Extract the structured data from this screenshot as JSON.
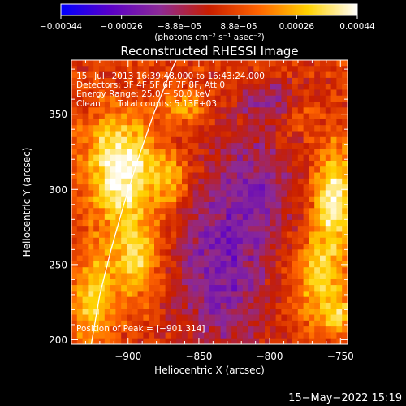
{
  "chart_data": {
    "type": "heatmap",
    "title": "Reconstructed RHESSI Image",
    "xlabel": "Heliocentric X (arcsec)",
    "ylabel": "Heliocentric Y (arcsec)",
    "xlim": [
      -940,
      -745
    ],
    "ylim": [
      197,
      386
    ],
    "x_ticks": [
      -900,
      -850,
      -800,
      -750
    ],
    "x_tick_labels": [
      "−900",
      "−850",
      "−800",
      "−750"
    ],
    "y_ticks": [
      200,
      250,
      300,
      350
    ],
    "y_tick_labels": [
      "200",
      "250",
      "300",
      "350"
    ],
    "colorbar": {
      "range": [
        -0.00044,
        0.00044
      ],
      "ticks": [
        -0.00044,
        -0.00026,
        -8.8e-05,
        8.8e-05,
        0.00026,
        0.00044
      ],
      "tick_labels": [
        "−0.00044",
        "−0.00026",
        "−8.8e−05",
        "8.8e−05",
        "0.00026",
        "0.00044"
      ],
      "unit_label": "(photons cm⁻² s⁻¹ asec⁻²)",
      "colors": [
        "#0000ff",
        "#5a00c8",
        "#8c2a96",
        "#c81e00",
        "#ff6400",
        "#ffd200",
        "#ffffff"
      ]
    },
    "annotations": [
      "15−Jul−2013 16:39:48.000 to 16:43:24.000",
      "Detectors: 3F 4F 5F 6F 7F 8F, Att 0",
      "Energy Range: 25.0 − 50.0 keV",
      "Clean",
      "Total counts: 5.13E+03"
    ],
    "peak_label": "Position of Peak = [−901,314]",
    "peak": [
      -901,
      314
    ],
    "limb_curve": [
      [
        -926,
        197
      ],
      [
        -920,
        230
      ],
      [
        -912,
        260
      ],
      [
        -903,
        290
      ],
      [
        -893,
        320
      ],
      [
        -882,
        350
      ],
      [
        -870,
        378
      ],
      [
        -866,
        386
      ]
    ],
    "grid_size": [
      50,
      48
    ],
    "hot_regions": [
      {
        "x": -905,
        "y": 315,
        "rx": 24,
        "ry": 34,
        "level": 0.92
      },
      {
        "x": -895,
        "y": 255,
        "rx": 18,
        "ry": 28,
        "level": 0.65
      },
      {
        "x": -925,
        "y": 225,
        "rx": 15,
        "ry": 30,
        "level": 0.6
      },
      {
        "x": -870,
        "y": 305,
        "rx": 12,
        "ry": 16,
        "level": 0.5
      },
      {
        "x": -860,
        "y": 355,
        "rx": 14,
        "ry": 10,
        "level": 0.42
      },
      {
        "x": -755,
        "y": 295,
        "rx": 14,
        "ry": 32,
        "level": 0.8
      },
      {
        "x": -765,
        "y": 240,
        "rx": 18,
        "ry": 30,
        "level": 0.6
      },
      {
        "x": -780,
        "y": 350,
        "rx": 10,
        "ry": 10,
        "level": 0.32
      },
      {
        "x": -750,
        "y": 215,
        "rx": 10,
        "ry": 12,
        "level": 0.45
      }
    ],
    "cold_regions": [
      {
        "x": -835,
        "y": 245,
        "rx": 35,
        "ry": 55,
        "level": -0.55
      },
      {
        "x": -810,
        "y": 305,
        "rx": 30,
        "ry": 40,
        "level": -0.4
      },
      {
        "x": -800,
        "y": 360,
        "rx": 25,
        "ry": 15,
        "level": -0.35
      }
    ]
  },
  "footer": {
    "timestamp": "15−May−2022 15:19"
  }
}
